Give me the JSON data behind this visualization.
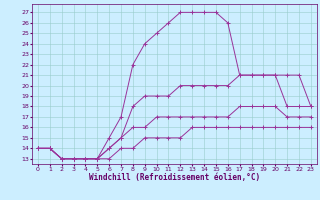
{
  "xlabel": "Windchill (Refroidissement éolien,°C)",
  "x_ticks": [
    0,
    1,
    2,
    3,
    4,
    5,
    6,
    7,
    8,
    9,
    10,
    11,
    12,
    13,
    14,
    15,
    16,
    17,
    18,
    19,
    20,
    21,
    22,
    23
  ],
  "y_ticks": [
    13,
    14,
    15,
    16,
    17,
    18,
    19,
    20,
    21,
    22,
    23,
    24,
    25,
    26,
    27
  ],
  "ylim": [
    12.5,
    27.8
  ],
  "xlim": [
    -0.5,
    23.5
  ],
  "bg_color": "#cceeff",
  "grid_color": "#99cccc",
  "line_color": "#993399",
  "series1": [
    [
      0,
      14
    ],
    [
      1,
      14
    ],
    [
      2,
      13
    ],
    [
      3,
      13
    ],
    [
      4,
      13
    ],
    [
      5,
      13
    ],
    [
      6,
      15
    ],
    [
      7,
      17
    ],
    [
      8,
      22
    ],
    [
      9,
      24
    ],
    [
      10,
      25
    ],
    [
      11,
      26
    ],
    [
      12,
      27
    ],
    [
      13,
      27
    ],
    [
      14,
      27
    ],
    [
      15,
      27
    ],
    [
      16,
      26
    ],
    [
      17,
      21
    ],
    [
      18,
      21
    ],
    [
      19,
      21
    ],
    [
      20,
      21
    ],
    [
      21,
      21
    ],
    [
      22,
      21
    ],
    [
      23,
      18
    ]
  ],
  "series2": [
    [
      0,
      14
    ],
    [
      1,
      14
    ],
    [
      2,
      13
    ],
    [
      3,
      13
    ],
    [
      4,
      13
    ],
    [
      5,
      13
    ],
    [
      6,
      14
    ],
    [
      7,
      15
    ],
    [
      8,
      18
    ],
    [
      9,
      19
    ],
    [
      10,
      19
    ],
    [
      11,
      19
    ],
    [
      12,
      20
    ],
    [
      13,
      20
    ],
    [
      14,
      20
    ],
    [
      15,
      20
    ],
    [
      16,
      20
    ],
    [
      17,
      21
    ],
    [
      18,
      21
    ],
    [
      19,
      21
    ],
    [
      20,
      21
    ],
    [
      21,
      18
    ],
    [
      22,
      18
    ],
    [
      23,
      18
    ]
  ],
  "series3": [
    [
      0,
      14
    ],
    [
      1,
      14
    ],
    [
      2,
      13
    ],
    [
      3,
      13
    ],
    [
      4,
      13
    ],
    [
      5,
      13
    ],
    [
      6,
      14
    ],
    [
      7,
      15
    ],
    [
      8,
      16
    ],
    [
      9,
      16
    ],
    [
      10,
      17
    ],
    [
      11,
      17
    ],
    [
      12,
      17
    ],
    [
      13,
      17
    ],
    [
      14,
      17
    ],
    [
      15,
      17
    ],
    [
      16,
      17
    ],
    [
      17,
      18
    ],
    [
      18,
      18
    ],
    [
      19,
      18
    ],
    [
      20,
      18
    ],
    [
      21,
      17
    ],
    [
      22,
      17
    ],
    [
      23,
      17
    ]
  ],
  "series4": [
    [
      0,
      14
    ],
    [
      1,
      14
    ],
    [
      2,
      13
    ],
    [
      3,
      13
    ],
    [
      4,
      13
    ],
    [
      5,
      13
    ],
    [
      6,
      13
    ],
    [
      7,
      14
    ],
    [
      8,
      14
    ],
    [
      9,
      15
    ],
    [
      10,
      15
    ],
    [
      11,
      15
    ],
    [
      12,
      15
    ],
    [
      13,
      16
    ],
    [
      14,
      16
    ],
    [
      15,
      16
    ],
    [
      16,
      16
    ],
    [
      17,
      16
    ],
    [
      18,
      16
    ],
    [
      19,
      16
    ],
    [
      20,
      16
    ],
    [
      21,
      16
    ],
    [
      22,
      16
    ],
    [
      23,
      16
    ]
  ]
}
